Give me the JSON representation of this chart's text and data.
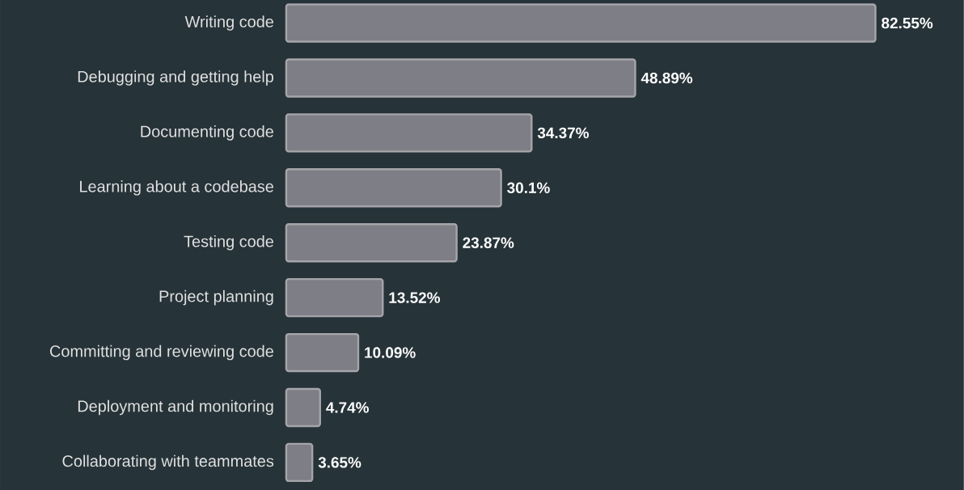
{
  "chart_data": {
    "type": "bar",
    "orientation": "horizontal",
    "categories": [
      "Writing code",
      "Debugging and getting help",
      "Documenting code",
      "Learning about a codebase",
      "Testing code",
      "Project planning",
      "Committing and reviewing code",
      "Deployment and monitoring",
      "Collaborating with teammates"
    ],
    "values": [
      82.55,
      48.89,
      34.37,
      30.1,
      23.87,
      13.52,
      10.09,
      4.74,
      3.65
    ],
    "value_labels": [
      "82.55%",
      "48.89%",
      "34.37%",
      "30.1%",
      "23.87%",
      "13.52%",
      "10.09%",
      "4.74%",
      "3.65%"
    ],
    "color": "#7e7e86"
  }
}
